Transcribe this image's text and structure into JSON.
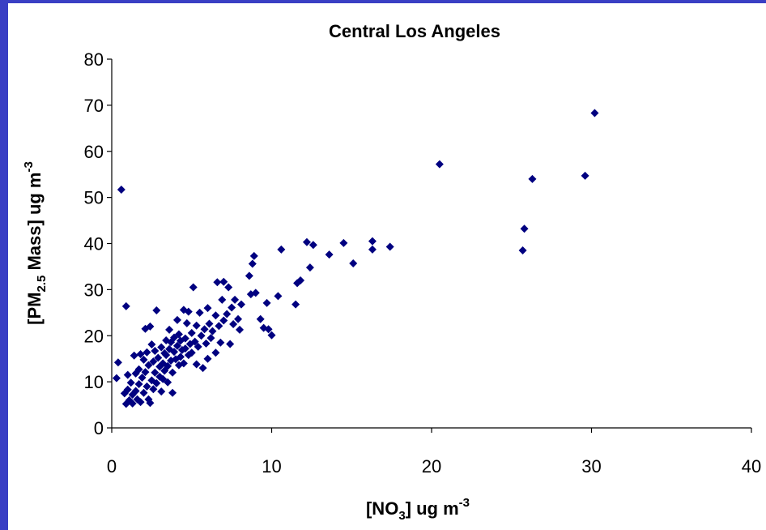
{
  "colors": {
    "frame_border": "#3a3fc4",
    "background": "#ffffff",
    "marker": "#000080",
    "axis": "#000000"
  },
  "chart_data": {
    "type": "scatter",
    "title": "Central Los Angeles",
    "xlabel": {
      "pre": "[NO",
      "sub": "3",
      "post": "] ug m",
      "sup": "-3"
    },
    "ylabel": {
      "pre": "[PM",
      "sub": "2.5",
      "post": " Mass] ug m",
      "sup": "-3"
    },
    "xlim": [
      0,
      40
    ],
    "ylim": [
      0,
      80
    ],
    "xticks": [
      "0",
      "10",
      "20",
      "30",
      "40"
    ],
    "yticks": [
      "0",
      "10",
      "20",
      "30",
      "40",
      "50",
      "60",
      "70",
      "80"
    ],
    "grid": false,
    "legend": "none",
    "marker": "diamond",
    "series": [
      {
        "points": [
          [
            0.3,
            10.8
          ],
          [
            0.4,
            14.2
          ],
          [
            0.6,
            51.7
          ],
          [
            0.8,
            7.5
          ],
          [
            0.9,
            26.4
          ],
          [
            0.9,
            5.2
          ],
          [
            1.0,
            8.3
          ],
          [
            1.0,
            11.5
          ],
          [
            1.1,
            6.0
          ],
          [
            1.2,
            9.8
          ],
          [
            1.3,
            5.3
          ],
          [
            1.3,
            7.2
          ],
          [
            1.4,
            15.7
          ],
          [
            1.5,
            11.8
          ],
          [
            1.5,
            8.0
          ],
          [
            1.6,
            6.2
          ],
          [
            1.7,
            12.7
          ],
          [
            1.7,
            9.5
          ],
          [
            1.8,
            16.0
          ],
          [
            1.8,
            5.6
          ],
          [
            1.9,
            10.9
          ],
          [
            2.0,
            14.8
          ],
          [
            2.0,
            7.6
          ],
          [
            2.1,
            21.5
          ],
          [
            2.1,
            12.1
          ],
          [
            2.2,
            9.0
          ],
          [
            2.2,
            16.4
          ],
          [
            2.3,
            6.2
          ],
          [
            2.3,
            13.6
          ],
          [
            2.4,
            22.0
          ],
          [
            2.4,
            5.4
          ],
          [
            2.5,
            10.3
          ],
          [
            2.5,
            18.1
          ],
          [
            2.6,
            8.4
          ],
          [
            2.6,
            14.4
          ],
          [
            2.7,
            12.0
          ],
          [
            2.7,
            16.7
          ],
          [
            2.8,
            25.5
          ],
          [
            2.8,
            9.7
          ],
          [
            2.9,
            15.2
          ],
          [
            3.0,
            11.1
          ],
          [
            3.0,
            13.3
          ],
          [
            3.1,
            17.5
          ],
          [
            3.1,
            7.9
          ],
          [
            3.2,
            14.0
          ],
          [
            3.2,
            10.6
          ],
          [
            3.3,
            16.2
          ],
          [
            3.3,
            12.4
          ],
          [
            3.4,
            19.0
          ],
          [
            3.4,
            15.8
          ],
          [
            3.5,
            13.4
          ],
          [
            3.5,
            9.9
          ],
          [
            3.6,
            17.1
          ],
          [
            3.6,
            21.3
          ],
          [
            3.7,
            14.6
          ],
          [
            3.7,
            18.6
          ],
          [
            3.8,
            12.0
          ],
          [
            3.8,
            7.6
          ],
          [
            3.9,
            16.5
          ],
          [
            3.9,
            19.6
          ],
          [
            4.0,
            14.9
          ],
          [
            4.1,
            23.4
          ],
          [
            4.1,
            17.8
          ],
          [
            4.2,
            13.6
          ],
          [
            4.2,
            20.3
          ],
          [
            4.3,
            15.4
          ],
          [
            4.3,
            18.9
          ],
          [
            4.4,
            16.9
          ],
          [
            4.5,
            25.6
          ],
          [
            4.5,
            14.0
          ],
          [
            4.6,
            19.4
          ],
          [
            4.6,
            17.2
          ],
          [
            4.7,
            22.7
          ],
          [
            4.8,
            15.8
          ],
          [
            4.8,
            25.2
          ],
          [
            4.9,
            18.2
          ],
          [
            5.0,
            16.3
          ],
          [
            5.0,
            20.6
          ],
          [
            5.1,
            30.5
          ],
          [
            5.2,
            18.7
          ],
          [
            5.3,
            13.8
          ],
          [
            5.3,
            22.2
          ],
          [
            5.4,
            17.6
          ],
          [
            5.5,
            25.0
          ],
          [
            5.6,
            20.0
          ],
          [
            5.7,
            13.0
          ],
          [
            5.8,
            21.4
          ],
          [
            5.9,
            18.3
          ],
          [
            6.0,
            26.0
          ],
          [
            6.0,
            15.0
          ],
          [
            6.1,
            22.6
          ],
          [
            6.2,
            19.5
          ],
          [
            6.3,
            21.0
          ],
          [
            6.5,
            16.3
          ],
          [
            6.5,
            24.4
          ],
          [
            6.6,
            31.6
          ],
          [
            6.7,
            22.1
          ],
          [
            6.8,
            18.5
          ],
          [
            6.9,
            27.8
          ],
          [
            7.0,
            23.3
          ],
          [
            7.0,
            31.7
          ],
          [
            7.2,
            24.7
          ],
          [
            7.3,
            30.5
          ],
          [
            7.4,
            18.2
          ],
          [
            7.5,
            26.1
          ],
          [
            7.6,
            22.5
          ],
          [
            7.7,
            27.8
          ],
          [
            7.9,
            23.6
          ],
          [
            8.0,
            21.3
          ],
          [
            8.1,
            26.8
          ],
          [
            8.6,
            33.0
          ],
          [
            8.7,
            29.0
          ],
          [
            8.8,
            35.6
          ],
          [
            8.9,
            37.3
          ],
          [
            9.0,
            29.3
          ],
          [
            9.3,
            23.6
          ],
          [
            9.5,
            21.7
          ],
          [
            9.7,
            27.1
          ],
          [
            9.8,
            21.4
          ],
          [
            10.0,
            20.1
          ],
          [
            10.4,
            28.6
          ],
          [
            10.6,
            38.7
          ],
          [
            11.5,
            26.8
          ],
          [
            11.6,
            31.4
          ],
          [
            11.8,
            32.0
          ],
          [
            12.2,
            40.3
          ],
          [
            12.4,
            34.8
          ],
          [
            12.6,
            39.7
          ],
          [
            13.6,
            37.6
          ],
          [
            14.5,
            40.1
          ],
          [
            15.1,
            35.7
          ],
          [
            16.3,
            38.7
          ],
          [
            16.3,
            40.5
          ],
          [
            17.4,
            39.3
          ],
          [
            20.5,
            57.2
          ],
          [
            25.7,
            38.5
          ],
          [
            25.8,
            43.2
          ],
          [
            26.3,
            54.0
          ],
          [
            29.6,
            54.7
          ],
          [
            30.2,
            68.3
          ]
        ]
      }
    ]
  }
}
